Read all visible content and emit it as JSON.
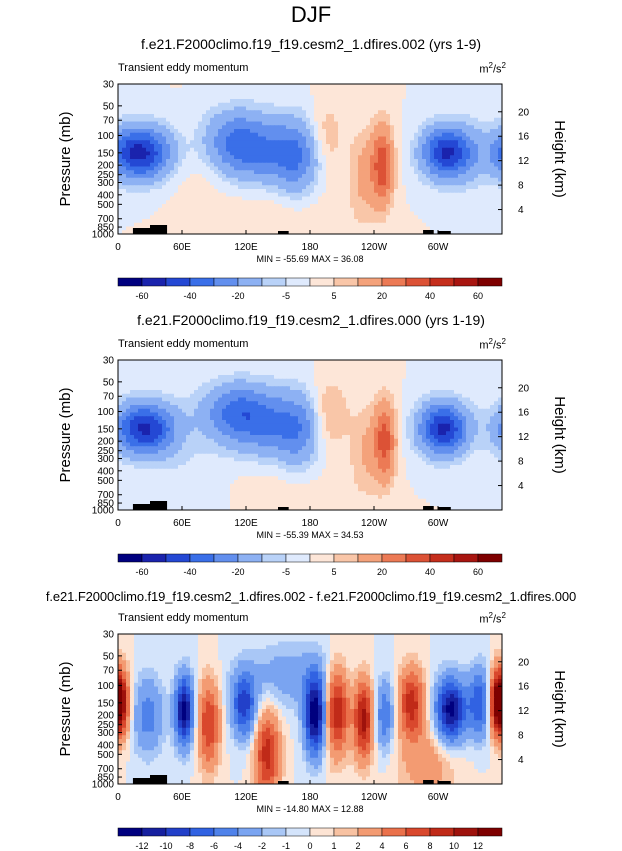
{
  "figure_title": "DJF",
  "chart_data": [
    {
      "type": "heatmap",
      "title": "f.e21.F2000climo.f19_f19.cesm2_1.dfires.002 (yrs 1-9)",
      "subtitle": "Transient eddy momentum",
      "units": "m²/s²",
      "ylabel": "Pressure (mb)",
      "ylabel_right": "Height (km)",
      "x_ticks": [
        "0",
        "60E",
        "120E",
        "180",
        "120W",
        "60W"
      ],
      "y_ticks": [
        "30",
        "50",
        "70",
        "100",
        "150",
        "200",
        "250",
        "300",
        "400",
        "500",
        "700",
        "850",
        "1000"
      ],
      "y_ticks_right": [
        "20",
        "16",
        "12",
        "8",
        "4"
      ],
      "stats_text": "MIN = -55.69   MAX = 36.08",
      "colorbar_labels": [
        "-60",
        "-40",
        "-20",
        "-5",
        "5",
        "20",
        "40",
        "60"
      ],
      "min": -55.69,
      "max": 36.08,
      "features": [
        {
          "lon": 20,
          "p": 150,
          "value": -55,
          "lon_w": 20,
          "lev_w": 1.2
        },
        {
          "lon": 108,
          "p": 110,
          "value": -22,
          "lon_w": 20,
          "lev_w": 1.4
        },
        {
          "lon": 140,
          "p": 150,
          "value": -28,
          "lon_w": 32,
          "lev_w": 1.6
        },
        {
          "lon": 168,
          "p": 180,
          "value": -18,
          "lon_w": 14,
          "lev_w": 1.8
        },
        {
          "lon": 308,
          "p": 150,
          "value": -52,
          "lon_w": 16,
          "lev_w": 1.2
        },
        {
          "lon": 332,
          "p": 150,
          "value": -6,
          "lon_w": 12,
          "lev_w": 1.8
        },
        {
          "lon": 248,
          "p": 200,
          "value": 36,
          "lon_w": 7,
          "lev_w": 1.8
        },
        {
          "lon": 230,
          "p": 250,
          "value": 12,
          "lon_w": 10,
          "lev_w": 2.2
        },
        {
          "lon": 195,
          "p": 110,
          "value": 12,
          "lon_w": 12,
          "lev_w": 1.6
        },
        {
          "lon": 150,
          "p": 500,
          "value": 5,
          "lon_w": 40,
          "lev_w": 2.5
        },
        {
          "lon": 80,
          "p": 200,
          "value": 4,
          "lon_w": 20,
          "lev_w": 2
        }
      ]
    },
    {
      "type": "heatmap",
      "title": "f.e21.F2000climo.f19_f19.cesm2_1.dfires.000 (yrs 1-19)",
      "subtitle": "Transient eddy momentum",
      "units": "m²/s²",
      "ylabel": "Pressure (mb)",
      "ylabel_right": "Height (km)",
      "x_ticks": [
        "0",
        "60E",
        "120E",
        "180",
        "120W",
        "60W"
      ],
      "y_ticks": [
        "30",
        "50",
        "70",
        "100",
        "150",
        "200",
        "250",
        "300",
        "400",
        "500",
        "700",
        "850",
        "1000"
      ],
      "y_ticks_right": [
        "20",
        "16",
        "12",
        "8",
        "4"
      ],
      "stats_text": "MIN = -55.39   MAX = 34.53",
      "colorbar_labels": [
        "-60",
        "-40",
        "-20",
        "-5",
        "5",
        "20",
        "40",
        "60"
      ],
      "min": -55.39,
      "max": 34.53,
      "features": [
        {
          "lon": 25,
          "p": 150,
          "value": -52,
          "lon_w": 20,
          "lev_w": 1.2
        },
        {
          "lon": 110,
          "p": 100,
          "value": -28,
          "lon_w": 22,
          "lev_w": 1.3
        },
        {
          "lon": 145,
          "p": 140,
          "value": -26,
          "lon_w": 28,
          "lev_w": 1.6
        },
        {
          "lon": 170,
          "p": 170,
          "value": -15,
          "lon_w": 14,
          "lev_w": 1.8
        },
        {
          "lon": 305,
          "p": 150,
          "value": -53,
          "lon_w": 16,
          "lev_w": 1.2
        },
        {
          "lon": 250,
          "p": 200,
          "value": 34,
          "lon_w": 7,
          "lev_w": 1.8
        },
        {
          "lon": 232,
          "p": 250,
          "value": 10,
          "lon_w": 10,
          "lev_w": 2.2
        },
        {
          "lon": 198,
          "p": 110,
          "value": 14,
          "lon_w": 12,
          "lev_w": 1.6
        },
        {
          "lon": 70,
          "p": 700,
          "value": -5,
          "lon_w": 25,
          "lev_w": 3
        },
        {
          "lon": 150,
          "p": 600,
          "value": 4,
          "lon_w": 40,
          "lev_w": 2.5
        }
      ]
    },
    {
      "type": "heatmap",
      "title": "f.e21.F2000climo.f19_f19.cesm2_1.dfires.002 - f.e21.F2000climo.f19_f19.cesm2_1.dfires.000",
      "subtitle": "Transient eddy momentum",
      "units": "m²/s²",
      "ylabel": "Pressure (mb)",
      "ylabel_right": "Height (km)",
      "x_ticks": [
        "0",
        "60E",
        "120E",
        "180",
        "120W",
        "60W"
      ],
      "y_ticks": [
        "30",
        "50",
        "70",
        "100",
        "150",
        "200",
        "250",
        "300",
        "400",
        "500",
        "700",
        "850",
        "1000"
      ],
      "y_ticks_right": [
        "20",
        "16",
        "12",
        "8",
        "4"
      ],
      "stats_text": "MIN = -14.80   MAX = 12.88",
      "colorbar_labels": [
        "-12",
        "-10",
        "-8",
        "-6",
        "-4",
        "-2",
        "-1",
        "0",
        "1",
        "2",
        "4",
        "6",
        "8",
        "10",
        "12"
      ],
      "min": -14.8,
      "max": 12.88,
      "features": [
        {
          "lon": 2,
          "p": 150,
          "value": 11,
          "lon_w": 6,
          "lev_w": 1.5
        },
        {
          "lon": 28,
          "p": 200,
          "value": -5,
          "lon_w": 10,
          "lev_w": 1.8
        },
        {
          "lon": 62,
          "p": 180,
          "value": -13,
          "lon_w": 6,
          "lev_w": 1.6
        },
        {
          "lon": 85,
          "p": 250,
          "value": 8,
          "lon_w": 7,
          "lev_w": 2
        },
        {
          "lon": 118,
          "p": 160,
          "value": -9,
          "lon_w": 8,
          "lev_w": 1.5
        },
        {
          "lon": 140,
          "p": 500,
          "value": 9,
          "lon_w": 8,
          "lev_w": 2
        },
        {
          "lon": 185,
          "p": 200,
          "value": -14,
          "lon_w": 7,
          "lev_w": 1.8
        },
        {
          "lon": 205,
          "p": 180,
          "value": 10,
          "lon_w": 8,
          "lev_w": 2
        },
        {
          "lon": 230,
          "p": 220,
          "value": 11,
          "lon_w": 6,
          "lev_w": 1.8
        },
        {
          "lon": 250,
          "p": 200,
          "value": -6,
          "lon_w": 6,
          "lev_w": 1.6
        },
        {
          "lon": 275,
          "p": 150,
          "value": 9,
          "lon_w": 8,
          "lev_w": 1.6
        },
        {
          "lon": 312,
          "p": 180,
          "value": -13,
          "lon_w": 10,
          "lev_w": 1.5
        },
        {
          "lon": 340,
          "p": 150,
          "value": -8,
          "lon_w": 8,
          "lev_w": 1.6
        },
        {
          "lon": 355,
          "p": 150,
          "value": 12,
          "lon_w": 6,
          "lev_w": 1.5
        },
        {
          "lon": 160,
          "p": 80,
          "value": -3,
          "lon_w": 30,
          "lev_w": 1.5
        },
        {
          "lon": 290,
          "p": 600,
          "value": 3,
          "lon_w": 20,
          "lev_w": 2
        }
      ]
    }
  ],
  "colors": {
    "palette": [
      "#00007f",
      "#1a23ad",
      "#2448d4",
      "#3a6fe8",
      "#628fee",
      "#8db1f3",
      "#b9d2f8",
      "#dfeafd",
      "#fde6d8",
      "#f9c6a8",
      "#f4a27b",
      "#ec7a55",
      "#dc5236",
      "#c52e1c",
      "#a81510",
      "#7e0000"
    ],
    "diff_palette": [
      "#00007f",
      "#16209f",
      "#2240c9",
      "#3162e2",
      "#4f82ea",
      "#7aa4f1",
      "#a9c7f6",
      "#d4e4fb",
      "#fde4d4",
      "#f8c2a2",
      "#f39b72",
      "#ea714b",
      "#d9482d",
      "#c02a18",
      "#9e120c",
      "#7e0000"
    ],
    "terrain": "#000000"
  }
}
